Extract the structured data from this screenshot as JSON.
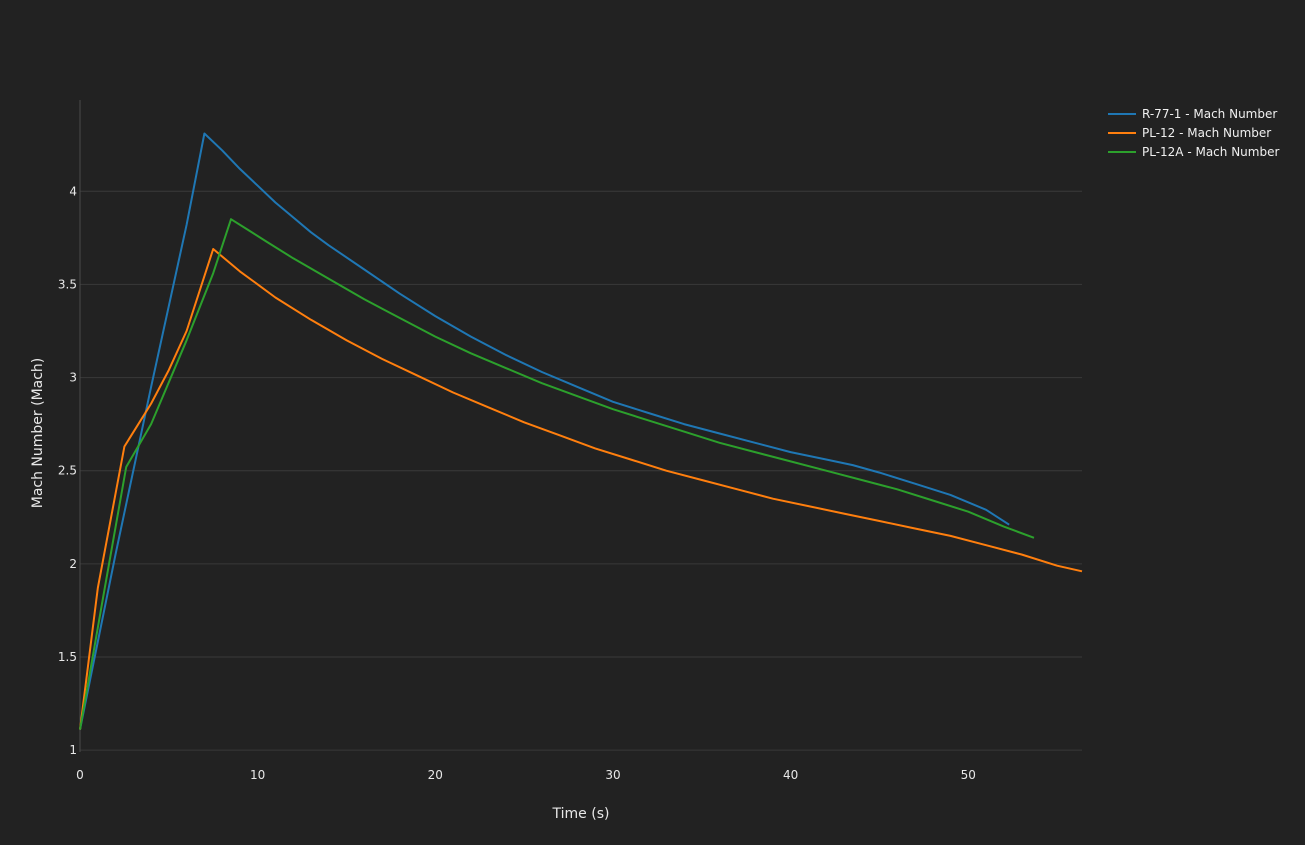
{
  "chart_data": {
    "type": "line",
    "title": "",
    "xlabel": "Time (s)",
    "ylabel": "Mach Number (Mach)",
    "xlim": [
      0,
      56.4
    ],
    "ylim": [
      0.99,
      4.49
    ],
    "xticks": [
      0,
      10,
      20,
      30,
      40,
      50
    ],
    "yticks": [
      1,
      1.5,
      2,
      2.5,
      3,
      3.5,
      4
    ],
    "grid": "horizontal",
    "legend_position": "top-right",
    "series": [
      {
        "name": "R-77-1 - Mach Number",
        "color": "#1f77b4",
        "x": [
          0,
          2,
          4,
          6,
          7,
          8,
          9,
          10,
          11,
          12,
          13,
          14,
          16,
          18,
          20,
          22,
          24,
          26,
          28,
          30,
          32,
          34,
          36,
          38,
          40,
          42,
          43.5,
          45,
          47,
          49,
          51,
          52.3
        ],
        "y": [
          1.11,
          2.05,
          2.95,
          3.82,
          4.31,
          4.22,
          4.12,
          4.03,
          3.94,
          3.86,
          3.78,
          3.71,
          3.58,
          3.45,
          3.33,
          3.22,
          3.12,
          3.03,
          2.95,
          2.87,
          2.81,
          2.75,
          2.7,
          2.65,
          2.6,
          2.56,
          2.53,
          2.49,
          2.43,
          2.37,
          2.29,
          2.21
        ]
      },
      {
        "name": "PL-12 - Mach Number",
        "color": "#ff7f0e",
        "x": [
          0,
          1,
          2.5,
          4,
          5,
          6,
          7.5,
          9,
          10,
          11,
          13,
          15,
          17,
          19,
          21,
          23,
          25,
          27,
          29,
          31,
          33,
          35,
          37,
          39,
          41,
          43,
          45,
          47,
          49,
          51,
          53,
          55,
          56.4
        ],
        "y": [
          1.11,
          1.87,
          2.63,
          2.86,
          3.04,
          3.25,
          3.69,
          3.57,
          3.5,
          3.43,
          3.31,
          3.2,
          3.1,
          3.01,
          2.92,
          2.84,
          2.76,
          2.69,
          2.62,
          2.56,
          2.5,
          2.45,
          2.4,
          2.35,
          2.31,
          2.27,
          2.23,
          2.19,
          2.15,
          2.1,
          2.05,
          1.99,
          1.96
        ]
      },
      {
        "name": "PL-12A - Mach Number",
        "color": "#2ca02c",
        "x": [
          0,
          1.3,
          2.6,
          4,
          6,
          7.5,
          8.5,
          9.5,
          10.5,
          12,
          14,
          16,
          18,
          20,
          22,
          24,
          26,
          28,
          30,
          32,
          34,
          36,
          38,
          40,
          42,
          44,
          46,
          48,
          50,
          52,
          53.7
        ],
        "y": [
          1.11,
          1.82,
          2.52,
          2.75,
          3.2,
          3.56,
          3.85,
          3.79,
          3.73,
          3.64,
          3.53,
          3.42,
          3.32,
          3.22,
          3.13,
          3.05,
          2.97,
          2.9,
          2.83,
          2.77,
          2.71,
          2.65,
          2.6,
          2.55,
          2.5,
          2.45,
          2.4,
          2.34,
          2.28,
          2.2,
          2.14
        ]
      }
    ]
  }
}
